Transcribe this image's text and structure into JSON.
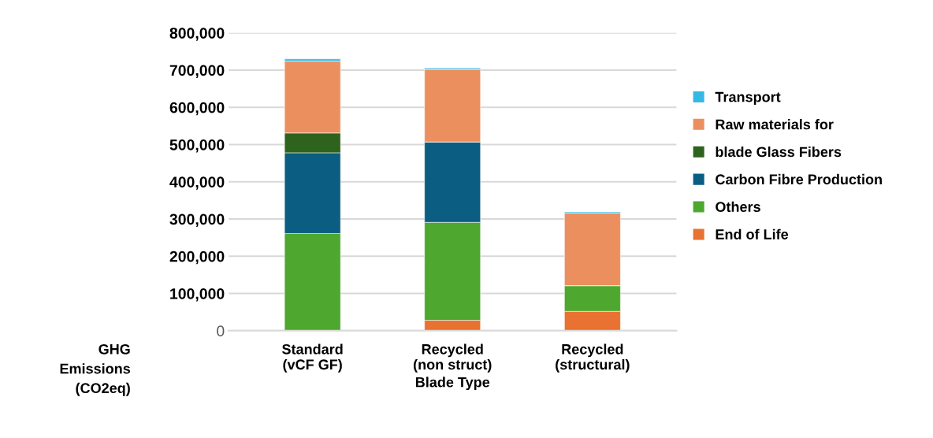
{
  "chart_data": {
    "type": "bar",
    "stacked": true,
    "xlabel": "Blade Type",
    "ylabel": "GHG\nEmissions\n(CO2eq)",
    "categories": [
      "Standard\n(vCF GF)",
      "Recycled\n(non struct)",
      "Recycled\n(structural)"
    ],
    "series": [
      {
        "name": "End of Life",
        "color": "#e97132",
        "values": [
          0,
          28000,
          52000
        ]
      },
      {
        "name": "Others",
        "color": "#4ea72e",
        "values": [
          261000,
          263000,
          69000
        ]
      },
      {
        "name": "Carbon Fibre Production",
        "color": "#0b5e81",
        "values": [
          217000,
          216000,
          0
        ]
      },
      {
        "name": "blade Glass Fibers",
        "color": "#2e631e",
        "values": [
          53000,
          0,
          0
        ]
      },
      {
        "name": "Raw materials for",
        "color": "#ec8f5e",
        "values": [
          193000,
          194000,
          195000
        ]
      },
      {
        "name": "Transport",
        "color": "#33b9e3",
        "values": [
          6000,
          4000,
          3000
        ]
      }
    ],
    "ylim": [
      0,
      800000
    ],
    "yticks": [
      0,
      {
        "value": 100000,
        "label": "100,000"
      },
      {
        "value": 200000,
        "label": "200,000"
      },
      {
        "value": 300000,
        "label": "300,000"
      },
      {
        "value": 400000,
        "label": "400,000"
      },
      {
        "value": 500000,
        "label": "500,000"
      },
      {
        "value": 600000,
        "label": "600,000"
      },
      {
        "value": 700000,
        "label": "700,000"
      },
      {
        "value": 800000,
        "label": "800,000"
      }
    ],
    "grid": "y",
    "legend": "right"
  }
}
